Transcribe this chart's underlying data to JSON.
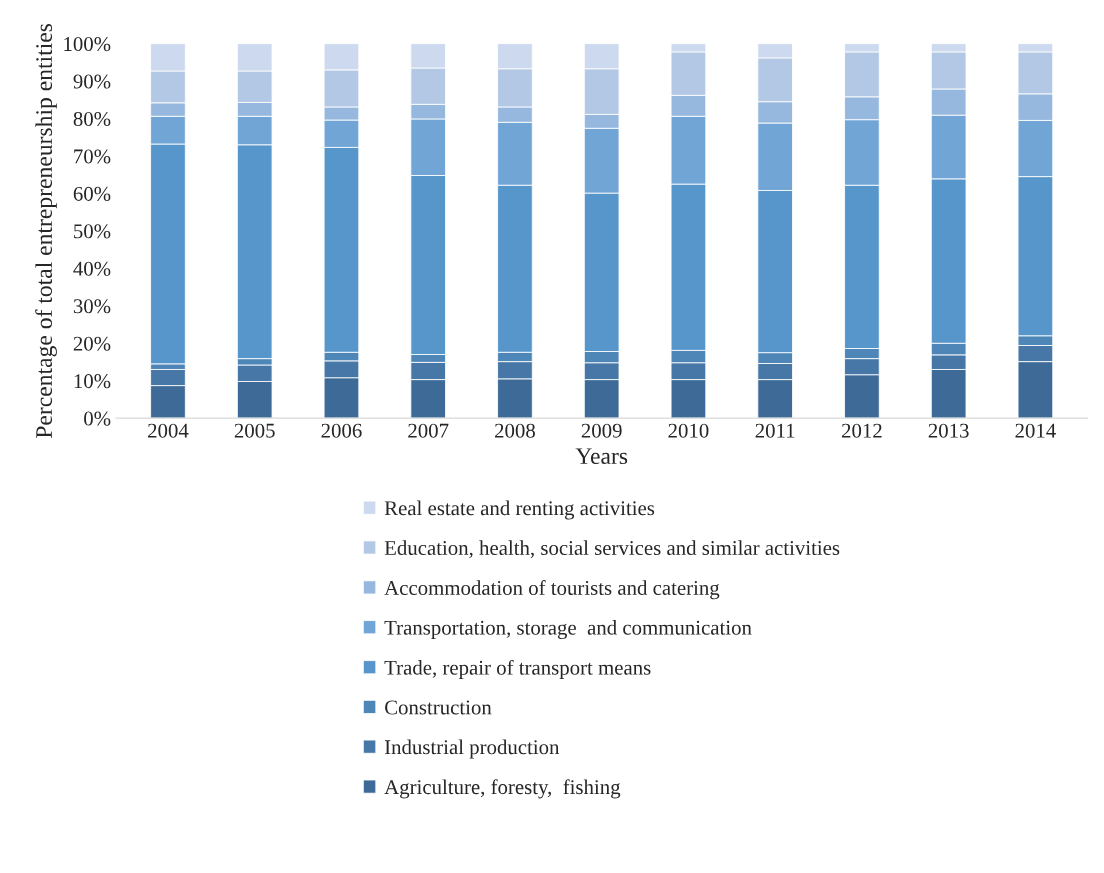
{
  "chart_data": {
    "type": "bar",
    "stacked": true,
    "xlabel": "Years",
    "ylabel": "Percentage of total entrepreneurship entities",
    "categories": [
      "2004",
      "2005",
      "2006",
      "2007",
      "2008",
      "2009",
      "2010",
      "2011",
      "2012",
      "2013",
      "2014"
    ],
    "ylim": [
      0,
      100
    ],
    "yticks": [
      {
        "value": 0,
        "label": "0%"
      },
      {
        "value": 10,
        "label": "10%"
      },
      {
        "value": 20,
        "label": "20%"
      },
      {
        "value": 30,
        "label": "30%"
      },
      {
        "value": 40,
        "label": "40%"
      },
      {
        "value": 50,
        "label": "50%"
      },
      {
        "value": 60,
        "label": "60%"
      },
      {
        "value": 70,
        "label": "70%"
      },
      {
        "value": 80,
        "label": "80%"
      },
      {
        "value": 90,
        "label": "90%"
      },
      {
        "value": 100,
        "label": "100%"
      }
    ],
    "grid": false,
    "legend": "bottom",
    "series": [
      {
        "name": "Agriculture, foresty,  fishing",
        "color": "#3d6a96",
        "values": [
          8.7,
          9.8,
          10.8,
          10.3,
          10.5,
          10.3,
          10.3,
          10.3,
          11.6,
          13.0,
          15.1
        ]
      },
      {
        "name": "Industrial production",
        "color": "#4677a6",
        "values": [
          4.3,
          4.4,
          4.5,
          4.6,
          4.6,
          4.5,
          4.5,
          4.3,
          4.3,
          3.9,
          4.3
        ]
      },
      {
        "name": "Construction",
        "color": "#4e86b8",
        "values": [
          1.5,
          1.7,
          2.3,
          2.1,
          2.5,
          3.0,
          3.3,
          2.9,
          2.7,
          3.1,
          2.6
        ]
      },
      {
        "name": "Trade, repair of transport means",
        "color": "#5796cb",
        "values": [
          58.7,
          57.1,
          54.7,
          47.8,
          44.6,
          42.3,
          44.4,
          43.3,
          43.6,
          43.9,
          42.5
        ]
      },
      {
        "name": "Transportation, storage  and communication",
        "color": "#71a5d6",
        "values": [
          7.4,
          7.6,
          7.3,
          15.1,
          16.8,
          17.3,
          18.1,
          18.0,
          17.5,
          17.0,
          15.0
        ]
      },
      {
        "name": "Accommodation of tourists and catering",
        "color": "#97b8de",
        "values": [
          3.6,
          3.7,
          3.5,
          3.9,
          4.1,
          3.7,
          5.6,
          5.7,
          6.1,
          7.0,
          7.1
        ]
      },
      {
        "name": "Education, health, social services and similar activities",
        "color": "#b3c8e4",
        "values": [
          8.5,
          8.4,
          9.9,
          9.7,
          10.2,
          12.2,
          11.6,
          11.7,
          12.0,
          9.9,
          11.2
        ]
      },
      {
        "name": "Real estate and renting activities",
        "color": "#ccd9ee",
        "values": [
          7.3,
          7.3,
          7.0,
          6.5,
          6.7,
          6.7,
          2.2,
          3.8,
          2.2,
          2.2,
          2.2
        ]
      }
    ]
  }
}
